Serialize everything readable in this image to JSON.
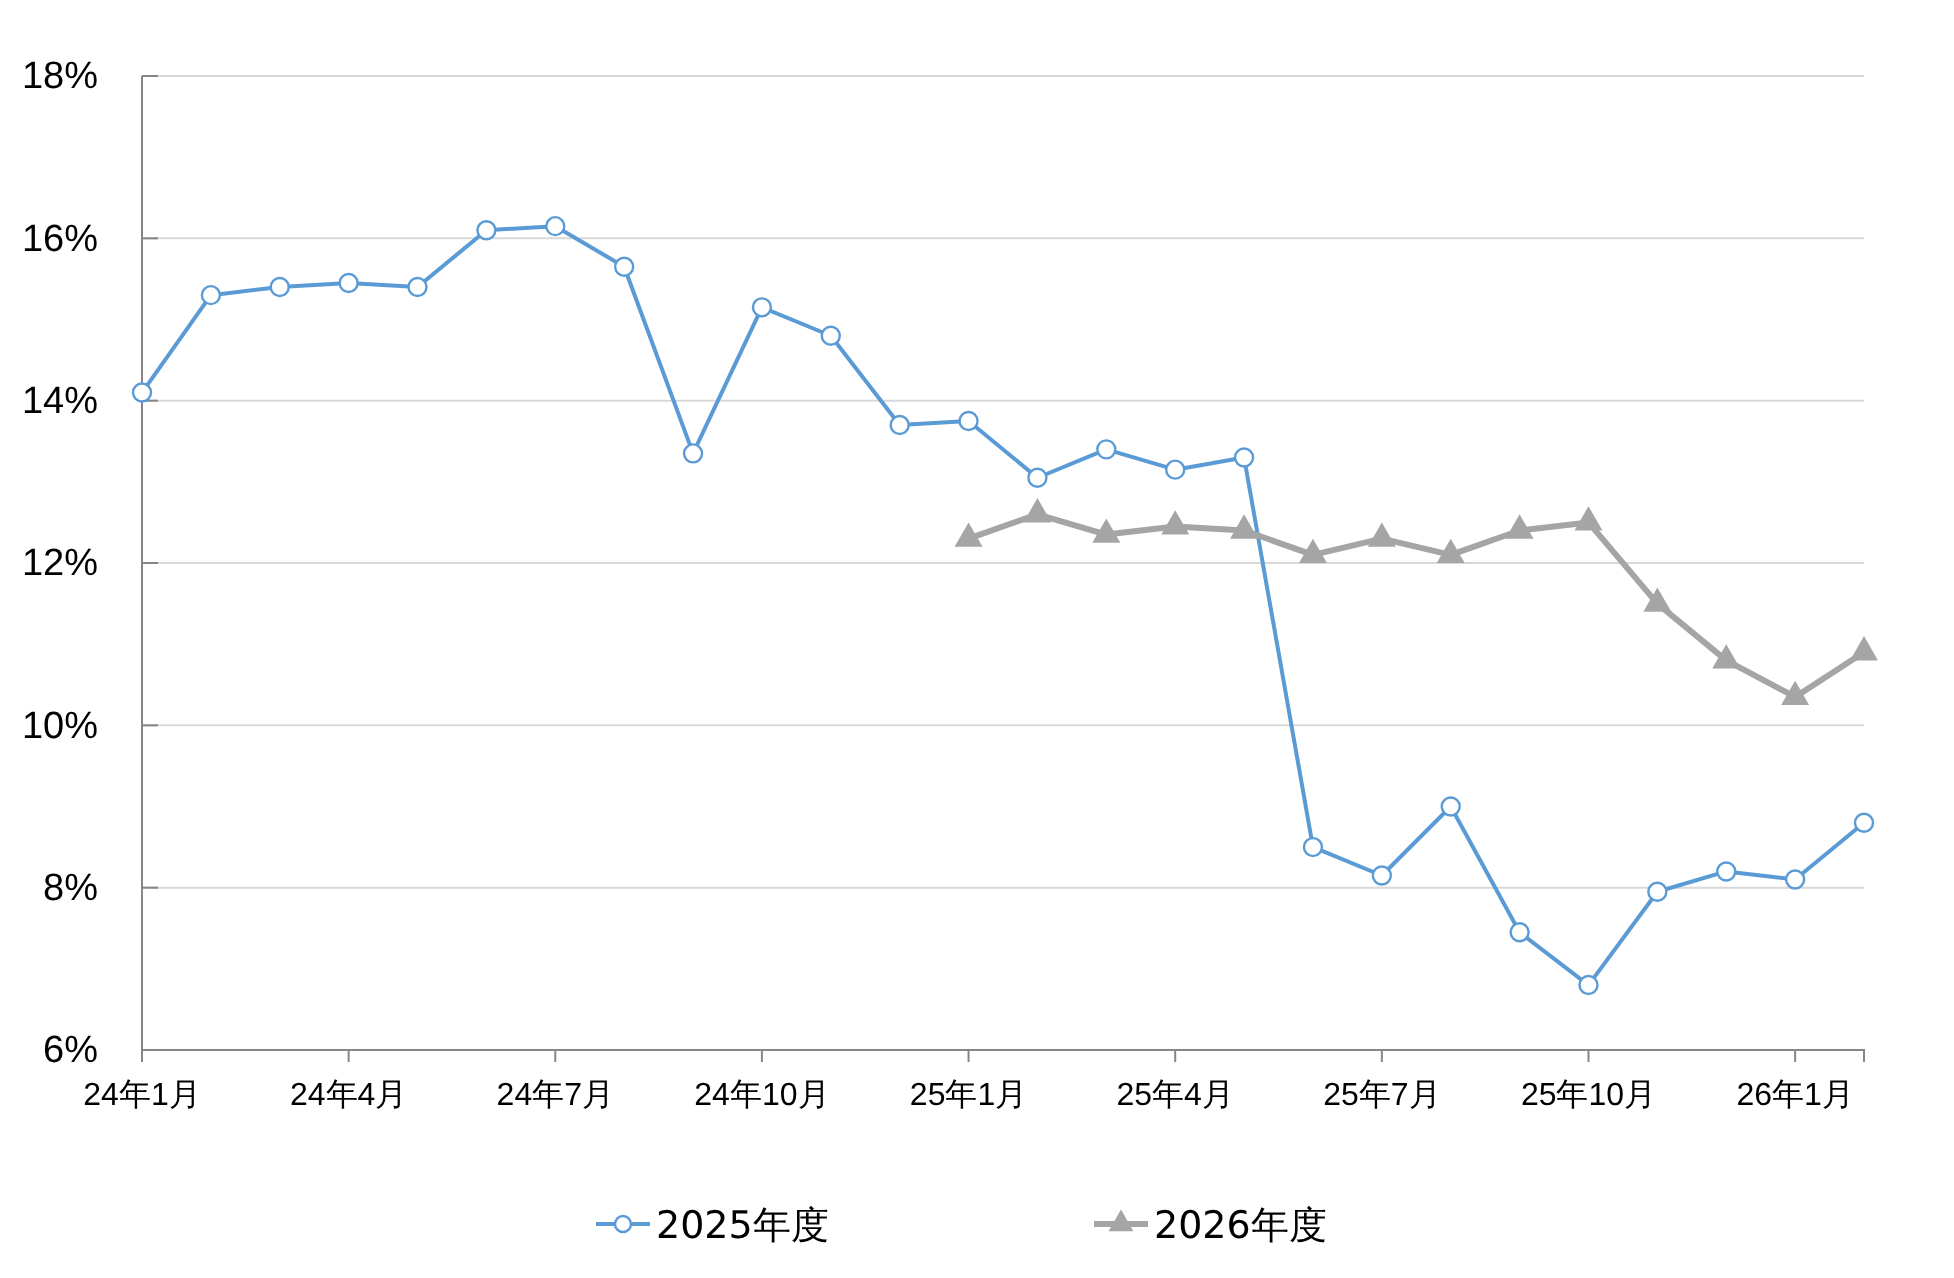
{
  "chart_data": {
    "type": "line",
    "x": [
      "2024-01",
      "2024-02",
      "2024-03",
      "2024-04",
      "2024-05",
      "2024-06",
      "2024-07",
      "2024-08",
      "2024-09",
      "2024-10",
      "2024-11",
      "2024-12",
      "2025-01",
      "2025-02",
      "2025-03",
      "2025-04",
      "2025-05",
      "2025-06",
      "2025-07",
      "2025-08",
      "2025-09",
      "2025-10",
      "2025-11",
      "2025-12",
      "2026-01",
      "2026-02"
    ],
    "xlim": [
      "2024-01",
      "2026-02"
    ],
    "xticks": [
      {
        "value": "2024-01",
        "label": "24年1月"
      },
      {
        "value": "2024-04",
        "label": "24年4月"
      },
      {
        "value": "2024-07",
        "label": "24年7月"
      },
      {
        "value": "2024-10",
        "label": "24年10月"
      },
      {
        "value": "2025-01",
        "label": "25年1月"
      },
      {
        "value": "2025-04",
        "label": "25年4月"
      },
      {
        "value": "2025-07",
        "label": "25年7月"
      },
      {
        "value": "2025-10",
        "label": "25年10月"
      },
      {
        "value": "2026-01",
        "label": "26年1月"
      }
    ],
    "ylim": [
      6,
      18
    ],
    "yticks": [
      {
        "value": 6,
        "label": "6%"
      },
      {
        "value": 8,
        "label": "8%"
      },
      {
        "value": 10,
        "label": "10%"
      },
      {
        "value": 12,
        "label": "12%"
      },
      {
        "value": 14,
        "label": "14%"
      },
      {
        "value": 16,
        "label": "16%"
      },
      {
        "value": 18,
        "label": "18%"
      }
    ],
    "grid": "y",
    "legend": "bottom",
    "line_style": "solid",
    "series": [
      {
        "name": "2025年度",
        "color": "#5b9bd5",
        "marker": "circle",
        "values": [
          14.1,
          15.3,
          15.4,
          15.45,
          15.4,
          16.1,
          16.15,
          15.65,
          13.35,
          15.15,
          14.8,
          13.7,
          13.75,
          13.05,
          13.4,
          13.15,
          13.3,
          8.5,
          8.15,
          9.0,
          7.45,
          6.8,
          7.95,
          8.2,
          8.1,
          8.8
        ]
      },
      {
        "name": "2026年度",
        "color": "#a5a5a5",
        "marker": "triangle",
        "x": [
          "2025-01",
          "2025-02",
          "2025-03",
          "2025-04",
          "2025-05",
          "2025-06",
          "2025-07",
          "2025-08",
          "2025-09",
          "2025-10",
          "2025-11",
          "2025-12",
          "2026-01",
          "2026-02"
        ],
        "values": [
          12.3,
          12.6,
          12.35,
          12.45,
          12.4,
          12.1,
          12.3,
          12.1,
          12.4,
          12.5,
          11.5,
          10.8,
          10.35,
          10.9
        ]
      }
    ]
  }
}
